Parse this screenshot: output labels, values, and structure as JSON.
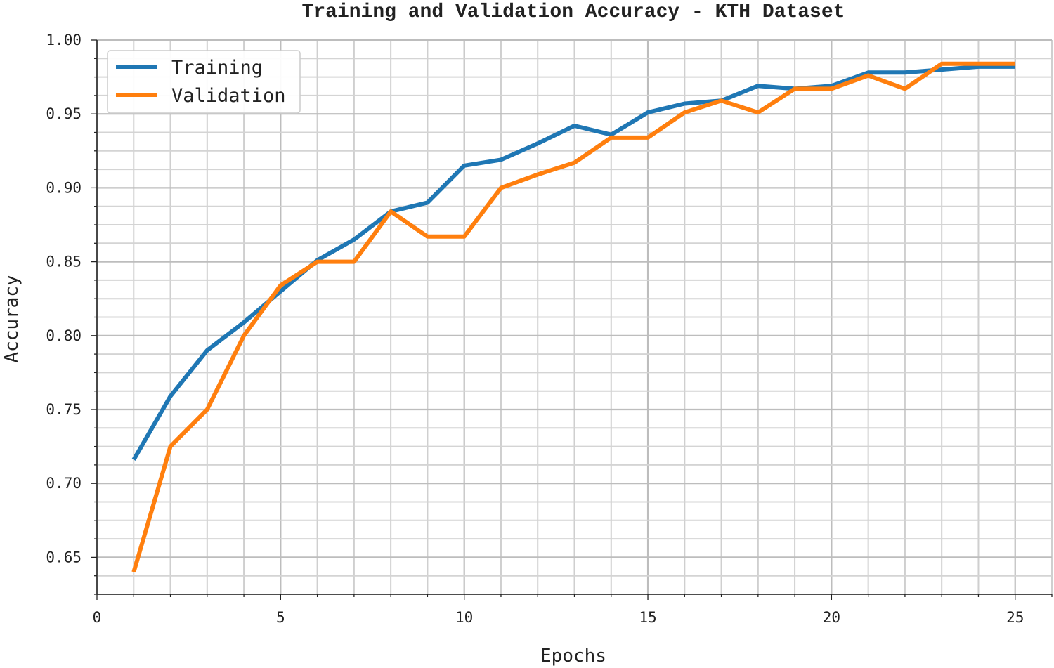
{
  "chart_data": {
    "type": "line",
    "title": "Training and Validation Accuracy - KTH Dataset",
    "xlabel": "Epochs",
    "ylabel": "Accuracy",
    "xlim": [
      0,
      26
    ],
    "ylim": [
      0.625,
      1.0
    ],
    "x_ticks": [
      0,
      5,
      10,
      15,
      20,
      25
    ],
    "x_tick_labels": [
      "0",
      "5",
      "10",
      "15",
      "20",
      "25"
    ],
    "y_ticks": [
      0.65,
      0.7,
      0.75,
      0.8,
      0.85,
      0.9,
      0.95,
      1.0
    ],
    "y_tick_labels": [
      "0.65",
      "0.70",
      "0.75",
      "0.80",
      "0.85",
      "0.90",
      "0.95",
      "1.00"
    ],
    "grid": true,
    "minor_grid": true,
    "legend_position": "top-left",
    "x": [
      1,
      2,
      3,
      4,
      5,
      6,
      7,
      8,
      9,
      10,
      11,
      12,
      13,
      14,
      15,
      16,
      17,
      18,
      19,
      20,
      21,
      22,
      23,
      24,
      25
    ],
    "series": [
      {
        "name": "Training",
        "color": "#1f77b4",
        "values": [
          0.716,
          0.759,
          0.79,
          0.809,
          0.83,
          0.851,
          0.865,
          0.884,
          0.89,
          0.915,
          0.919,
          0.93,
          0.942,
          0.936,
          0.951,
          0.957,
          0.959,
          0.969,
          0.967,
          0.969,
          0.978,
          0.978,
          0.98,
          0.982,
          0.982
        ]
      },
      {
        "name": "Validation",
        "color": "#ff7f0e",
        "values": [
          0.64,
          0.725,
          0.75,
          0.8,
          0.834,
          0.85,
          0.85,
          0.884,
          0.867,
          0.867,
          0.9,
          0.909,
          0.917,
          0.934,
          0.934,
          0.951,
          0.959,
          0.951,
          0.967,
          0.967,
          0.976,
          0.967,
          0.984,
          0.984,
          0.984
        ]
      }
    ]
  }
}
